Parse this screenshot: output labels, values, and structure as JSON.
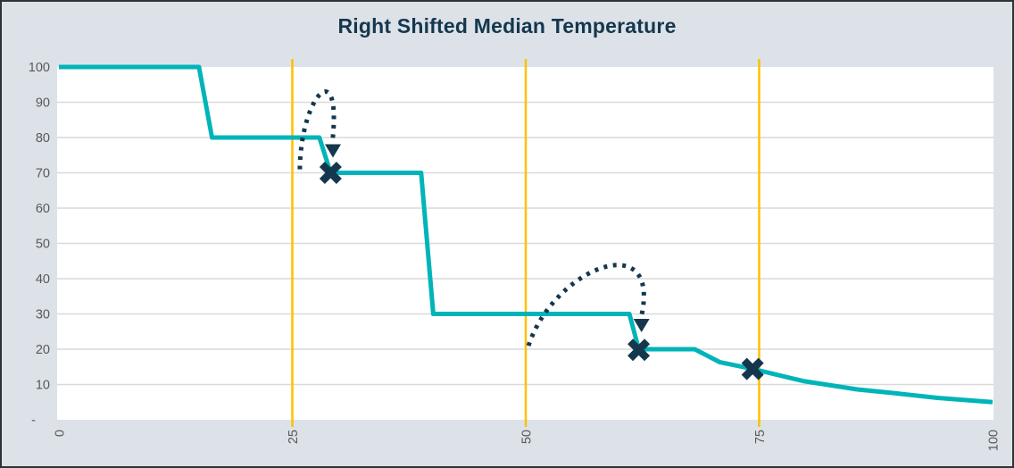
{
  "chart_data": {
    "type": "line",
    "title": "Right Shifted Median Temperature",
    "xlabel": "",
    "ylabel": "",
    "xlim": [
      0,
      100
    ],
    "ylim": [
      0,
      100
    ],
    "grid": "horizontal",
    "legend_position": "none",
    "x_ticks": [
      {
        "value": 0,
        "label": "0"
      },
      {
        "value": 25,
        "label": "25"
      },
      {
        "value": 50,
        "label": "50"
      },
      {
        "value": 75,
        "label": "75"
      },
      {
        "value": 100,
        "label": "100"
      }
    ],
    "y_ticks": [
      {
        "value": 0,
        "label": "-"
      },
      {
        "value": 10,
        "label": "10"
      },
      {
        "value": 20,
        "label": "20"
      },
      {
        "value": 30,
        "label": "30"
      },
      {
        "value": 40,
        "label": "40"
      },
      {
        "value": 50,
        "label": "50"
      },
      {
        "value": 60,
        "label": "60"
      },
      {
        "value": 70,
        "label": "70"
      },
      {
        "value": 80,
        "label": "80"
      },
      {
        "value": 90,
        "label": "90"
      },
      {
        "value": 100,
        "label": "100"
      }
    ],
    "series": [
      {
        "name": "right-shifted-median-temperature",
        "points": [
          [
            0,
            100
          ],
          [
            15,
            100
          ],
          [
            16.4,
            80
          ],
          [
            27.9,
            80
          ],
          [
            29.1,
            70
          ],
          [
            38.8,
            70
          ],
          [
            40.1,
            30
          ],
          [
            61.1,
            30
          ],
          [
            62.1,
            20
          ],
          [
            68.1,
            20
          ],
          [
            70.8,
            16.3
          ],
          [
            74.3,
            14.4
          ],
          [
            79.7,
            11
          ],
          [
            85.5,
            8.6
          ],
          [
            89.3,
            7.6
          ],
          [
            94.1,
            6.2
          ],
          [
            100,
            5
          ]
        ]
      }
    ],
    "markers": {
      "shape": "x",
      "points": [
        [
          29.1,
          70
        ],
        [
          62.1,
          19.8
        ],
        [
          74.3,
          14.4
        ]
      ]
    },
    "vertical_lines": {
      "x_values": [
        25,
        50,
        75
      ]
    },
    "shift_arrows": [
      {
        "from": [
          25.8,
          71
        ],
        "c1": [
          25.9,
          92
        ],
        "c2": [
          30.3,
          104
        ],
        "to": [
          29.3,
          79
        ],
        "tip": [
          29.35,
          74.3
        ]
      },
      {
        "from": [
          50.3,
          21
        ],
        "c1": [
          53,
          43
        ],
        "c2": [
          64.5,
          55
        ],
        "to": [
          62.4,
          29.5
        ],
        "tip": [
          62.4,
          24.8
        ]
      }
    ]
  },
  "colors": {
    "line_teal": "#00b4b8",
    "navy": "#15374e",
    "vline_yellow": "#ffc000",
    "gridline_gray": "#d9d9d9",
    "chart_background": "#dce2e8",
    "plot_background": "#ffffff",
    "tick_text": "#595959",
    "border": "#2e3338"
  }
}
